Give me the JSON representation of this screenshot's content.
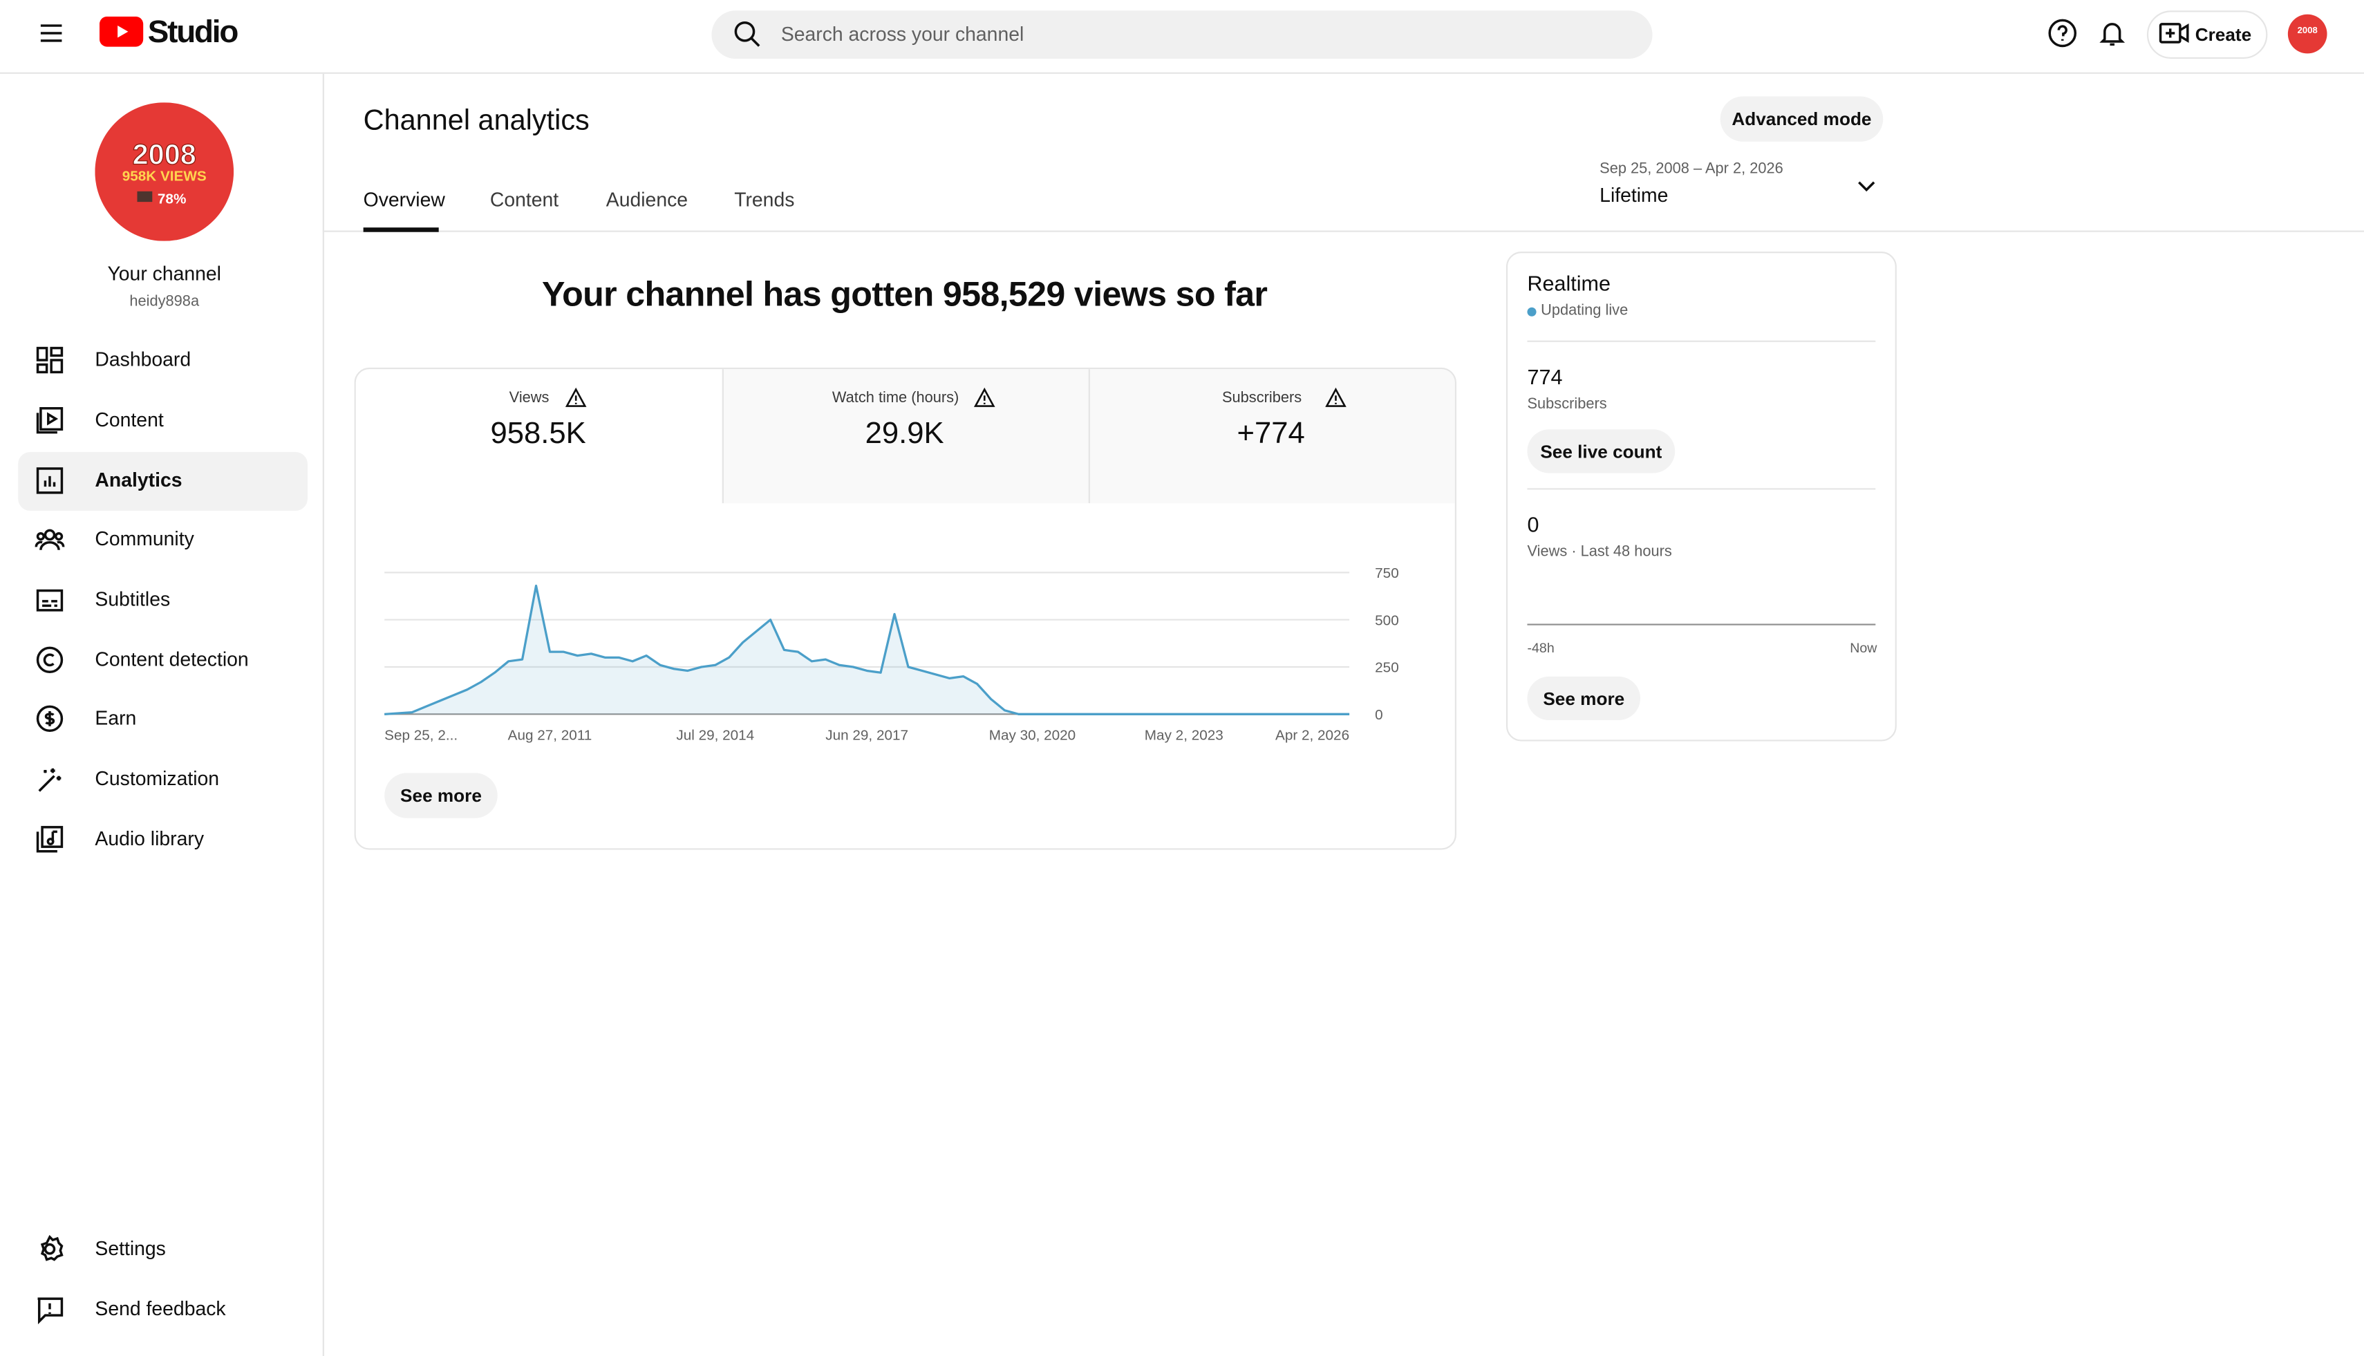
{
  "header": {
    "logo": "Studio",
    "search_placeholder": "Search across your channel",
    "create": "Create"
  },
  "sidebar": {
    "avatar": {
      "line1": "2008",
      "line2": "958K VIEWS",
      "line3": "78%"
    },
    "channel_title": "Your channel",
    "handle": "heidy898a",
    "nav": [
      "Dashboard",
      "Content",
      "Analytics",
      "Community",
      "Subtitles",
      "Content detection",
      "Earn",
      "Customization",
      "Audio library"
    ],
    "footer": [
      "Settings",
      "Send feedback"
    ]
  },
  "main": {
    "title": "Channel analytics",
    "advanced": "Advanced mode",
    "date_range": "Sep 25, 2008 – Apr 2, 2026",
    "period": "Lifetime",
    "tabs": [
      "Overview",
      "Content",
      "Audience",
      "Trends"
    ],
    "headline": "Your channel has gotten 958,529 views so far",
    "metrics": [
      {
        "label": "Views",
        "value": "958.5K"
      },
      {
        "label": "Watch time (hours)",
        "value": "29.9K"
      },
      {
        "label": "Subscribers",
        "value": "+774"
      }
    ],
    "see_more": "See more"
  },
  "chart_data": {
    "type": "line",
    "color": "#4b9fc9",
    "categories": [
      "Sep 25, 2...",
      null,
      null,
      null,
      null,
      null,
      null,
      null,
      null,
      null,
      null,
      null,
      "Aug 27, 2011",
      null,
      null,
      null,
      null,
      null,
      null,
      null,
      null,
      null,
      null,
      null,
      "Jul 29, 2014",
      null,
      null,
      null,
      null,
      null,
      null,
      null,
      null,
      null,
      null,
      "Jun 29, 2017",
      null,
      null,
      null,
      null,
      null,
      null,
      null,
      null,
      null,
      null,
      null,
      "May 30, 2020",
      null,
      null,
      null,
      null,
      null,
      null,
      null,
      null,
      null,
      null,
      "May 2, 2023",
      null,
      null,
      null,
      null,
      null,
      null,
      null,
      null,
      null,
      null,
      null,
      "Apr 2, 2026"
    ],
    "values": [
      0,
      5,
      10,
      40,
      70,
      100,
      130,
      170,
      220,
      280,
      290,
      680,
      330,
      330,
      310,
      320,
      300,
      300,
      280,
      310,
      260,
      240,
      230,
      250,
      260,
      300,
      380,
      440,
      500,
      340,
      330,
      280,
      290,
      260,
      250,
      230,
      220,
      530,
      250,
      230,
      210,
      190,
      200,
      160,
      80,
      20,
      0,
      0,
      0,
      0,
      0,
      0,
      0,
      0,
      0,
      0,
      0,
      0,
      0,
      0,
      0,
      0,
      0,
      0,
      0,
      0,
      0,
      0,
      0,
      0,
      0
    ],
    "ylim": [
      0,
      750
    ],
    "yticks": [
      0,
      250,
      500,
      750
    ],
    "grid": true
  },
  "realtime": {
    "title": "Realtime",
    "status": "Updating live",
    "subscribers": "774",
    "subscribers_label": "Subscribers",
    "live_count": "See live count",
    "views": "0",
    "views_label": "Views · Last 48 hours",
    "start": "-48h",
    "end": "Now",
    "see_more": "See more"
  }
}
